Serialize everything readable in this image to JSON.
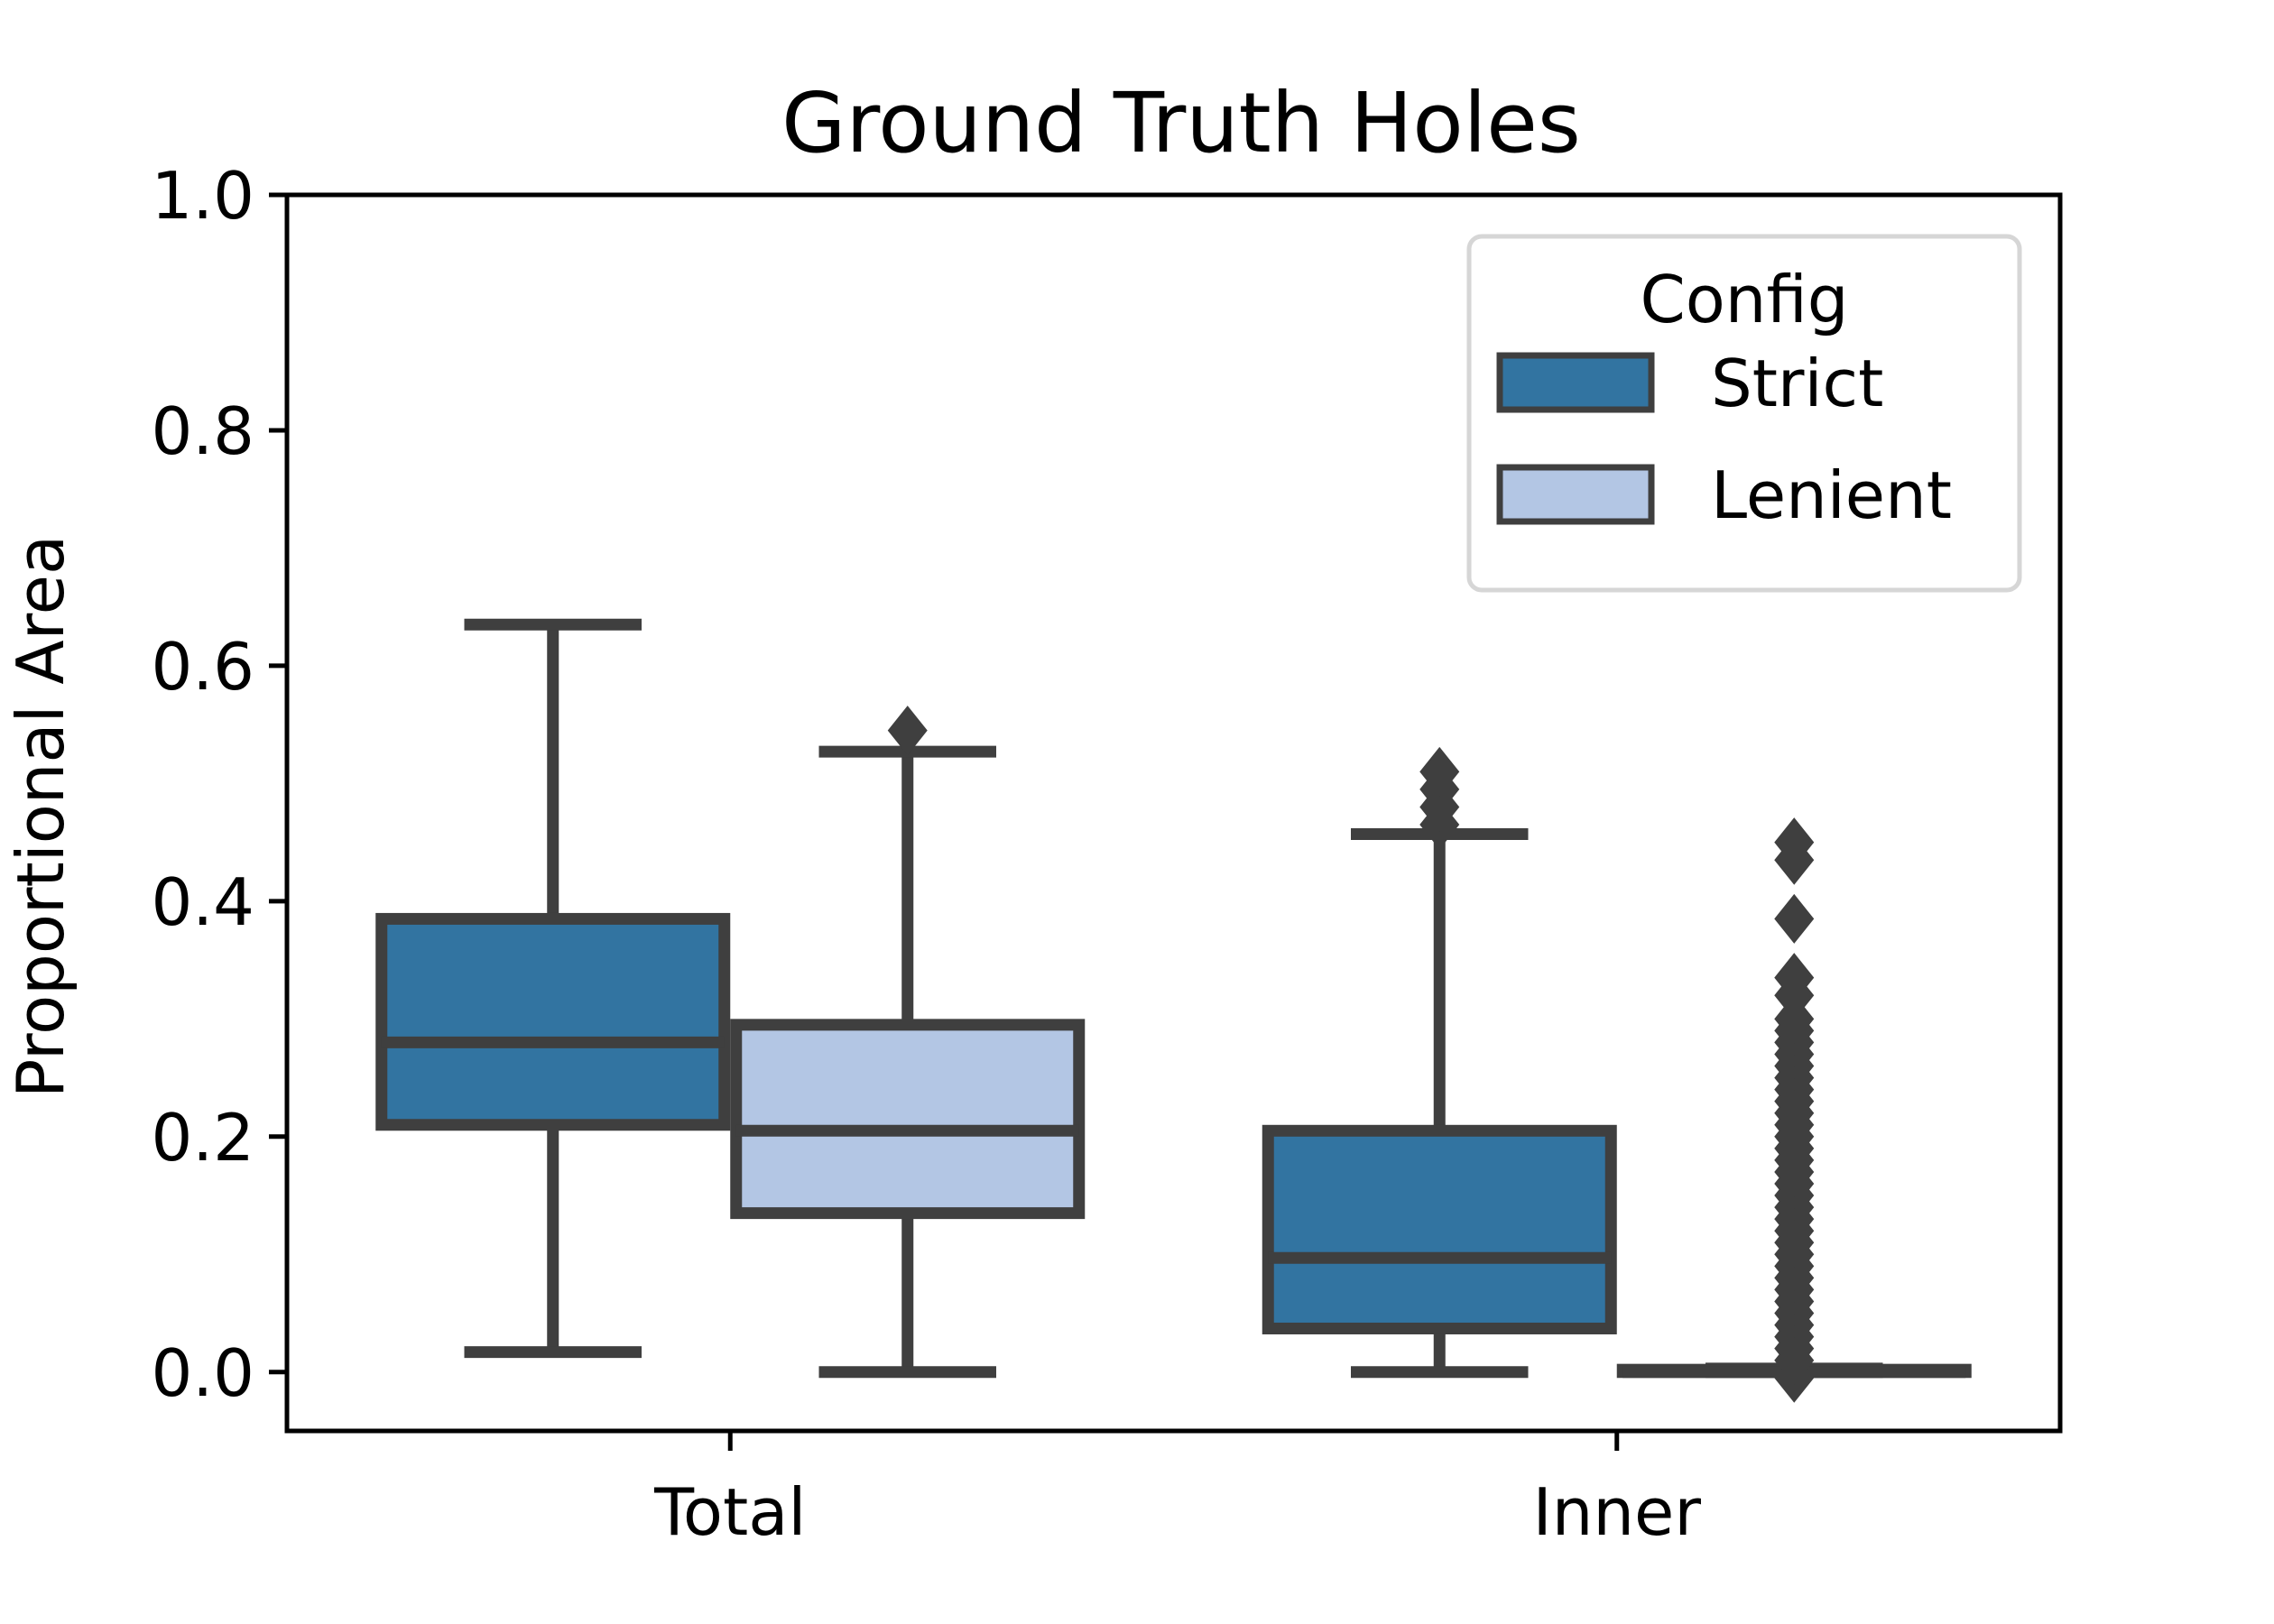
{
  "chart_data": {
    "type": "box",
    "title": "Ground Truth Holes",
    "xlabel": "",
    "ylabel": "Proportional Area",
    "ylim": [
      -0.05,
      1.0
    ],
    "yticks": [
      "0.0",
      "0.2",
      "0.4",
      "0.6",
      "0.8",
      "1.0"
    ],
    "ytick_values": [
      0.0,
      0.2,
      0.4,
      0.6,
      0.8,
      1.0
    ],
    "categories": [
      "Total",
      "Inner"
    ],
    "grid": false,
    "legend": {
      "title": "Config",
      "position": "top-right",
      "entries": [
        "Strict",
        "Lenient"
      ]
    },
    "series": [
      {
        "name": "Strict",
        "color": "#3274a1",
        "boxes": [
          {
            "category": "Total",
            "whisker_low": 0.017,
            "q1": 0.21,
            "median": 0.28,
            "q3": 0.385,
            "whisker_high": 0.635,
            "outliers": []
          },
          {
            "category": "Inner",
            "whisker_low": 0.0,
            "q1": 0.037,
            "median": 0.097,
            "q3": 0.205,
            "whisker_high": 0.457,
            "outliers": [
              0.465,
              0.48,
              0.495,
              0.51
            ]
          }
        ]
      },
      {
        "name": "Lenient",
        "color": "#b3c6e4",
        "boxes": [
          {
            "category": "Total",
            "whisker_low": 0.0,
            "q1": 0.135,
            "median": 0.205,
            "q3": 0.295,
            "whisker_high": 0.527,
            "outliers": [
              0.545
            ]
          },
          {
            "category": "Inner",
            "whisker_low": 0.0,
            "q1": 0.0,
            "median": 0.0,
            "q3": 0.002,
            "whisker_high": 0.003,
            "outliers": [
              -0.005,
              0.01,
              0.02,
              0.03,
              0.04,
              0.05,
              0.06,
              0.07,
              0.08,
              0.09,
              0.1,
              0.11,
              0.12,
              0.13,
              0.14,
              0.15,
              0.16,
              0.17,
              0.18,
              0.19,
              0.2,
              0.21,
              0.22,
              0.23,
              0.24,
              0.25,
              0.26,
              0.27,
              0.28,
              0.29,
              0.3,
              0.32,
              0.335,
              0.385,
              0.435,
              0.45
            ]
          }
        ]
      }
    ],
    "edge_color": "#3f3f3f"
  }
}
